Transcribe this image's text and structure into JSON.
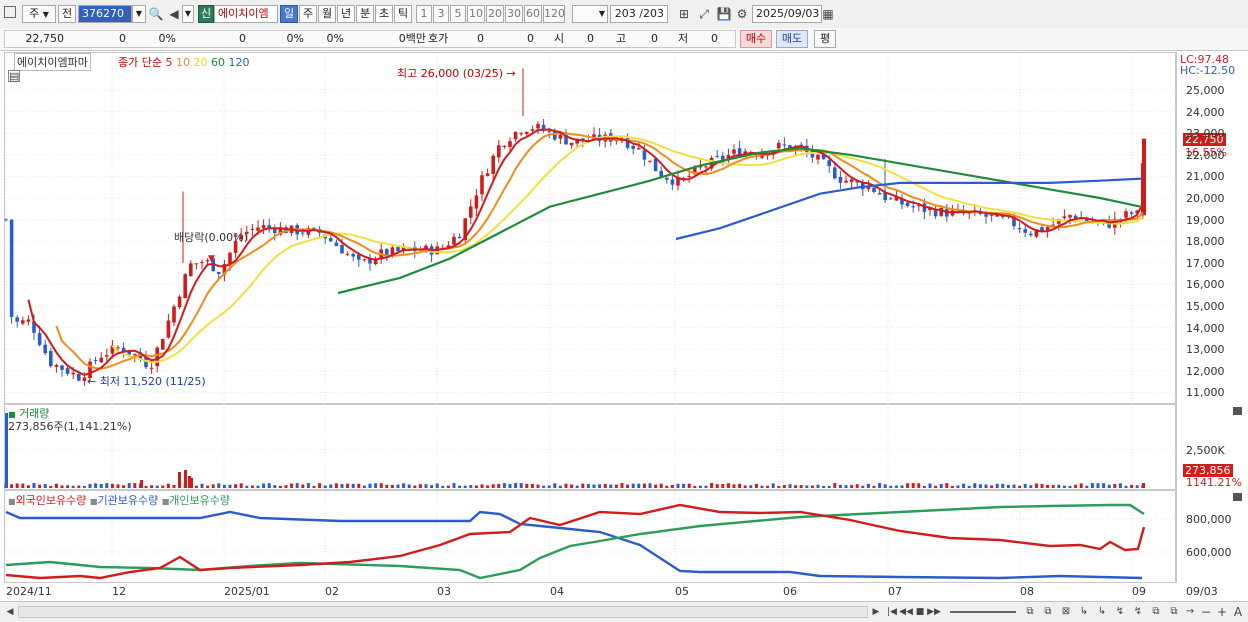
{
  "toolbar": {
    "menu_label": "주",
    "prev_label": "전",
    "stock_code": "376270",
    "new_badge": "신",
    "stock_name": "에이치이엠",
    "period_tabs": [
      "일",
      "주",
      "월",
      "년",
      "분",
      "초",
      "틱"
    ],
    "active_period": "일",
    "interval_tabs": [
      "1",
      "3",
      "5",
      "10",
      "20",
      "30",
      "60",
      "120"
    ],
    "count": "203 /203",
    "date": "2025/09/03"
  },
  "quote_bar": {
    "price": "22,750",
    "change": "0",
    "change_pct": "0%",
    "volume": "0",
    "vol_pct": "0%",
    "pct2": "0%",
    "amount": "0백만",
    "hoga_label": "호가",
    "hoga_val": "0",
    "val2": "0",
    "open_label": "시",
    "open_val": "0",
    "high_label": "고",
    "high_val": "0",
    "low_label": "저",
    "low_val": "0",
    "buy_label": "매수",
    "sell_label": "매도",
    "eval_label": "평"
  },
  "price_pane": {
    "stock_label": "에이치이엠파마",
    "ma_label": "종가 단순",
    "ma_periods": [
      "5",
      "10",
      "20",
      "60",
      "120"
    ],
    "ma_colors": [
      "#d21c1c",
      "#f08c1c",
      "#f0e040",
      "#1e8c3c",
      "#2c5ccc"
    ],
    "lc_label": "LC:97.48",
    "hc_label": "HC:-12.50",
    "current_price_tag": "22,750",
    "current_pct_tag": "16.55%",
    "high_annotation": "최고 26,000 (03/25)",
    "low_annotation": "최저 11,520 (11/25)",
    "dividend_annotation": "배당락(0.00%)",
    "y_ticks": [
      "25,000",
      "24,000",
      "23,000",
      "22,000",
      "21,000",
      "20,000",
      "19,000",
      "18,000",
      "17,000",
      "16,000",
      "15,000",
      "14,000",
      "13,000",
      "12,000",
      "11,000"
    ]
  },
  "volume_pane": {
    "title": "거래량",
    "value_label": "273,856주(1,141.21%)",
    "y_tick": "2,500K",
    "current_tag": "273,856",
    "current_pct_tag": "1141.21%"
  },
  "holdings_pane": {
    "series_labels": [
      "외국인보유수량",
      "기관보유수량",
      "개인보유수량"
    ],
    "series_colors": [
      "#d21c1c",
      "#2c5ccc",
      "#2c9c5c"
    ],
    "y_ticks": [
      "800,000",
      "600,000"
    ]
  },
  "x_axis": {
    "labels": [
      "2024/11",
      "12",
      "2025/01",
      "02",
      "03",
      "04",
      "05",
      "06",
      "07",
      "08",
      "09"
    ],
    "right_label": "09/03"
  },
  "status": {
    "zoom_out": "−",
    "zoom_in": "+",
    "font_label": "A"
  }
}
